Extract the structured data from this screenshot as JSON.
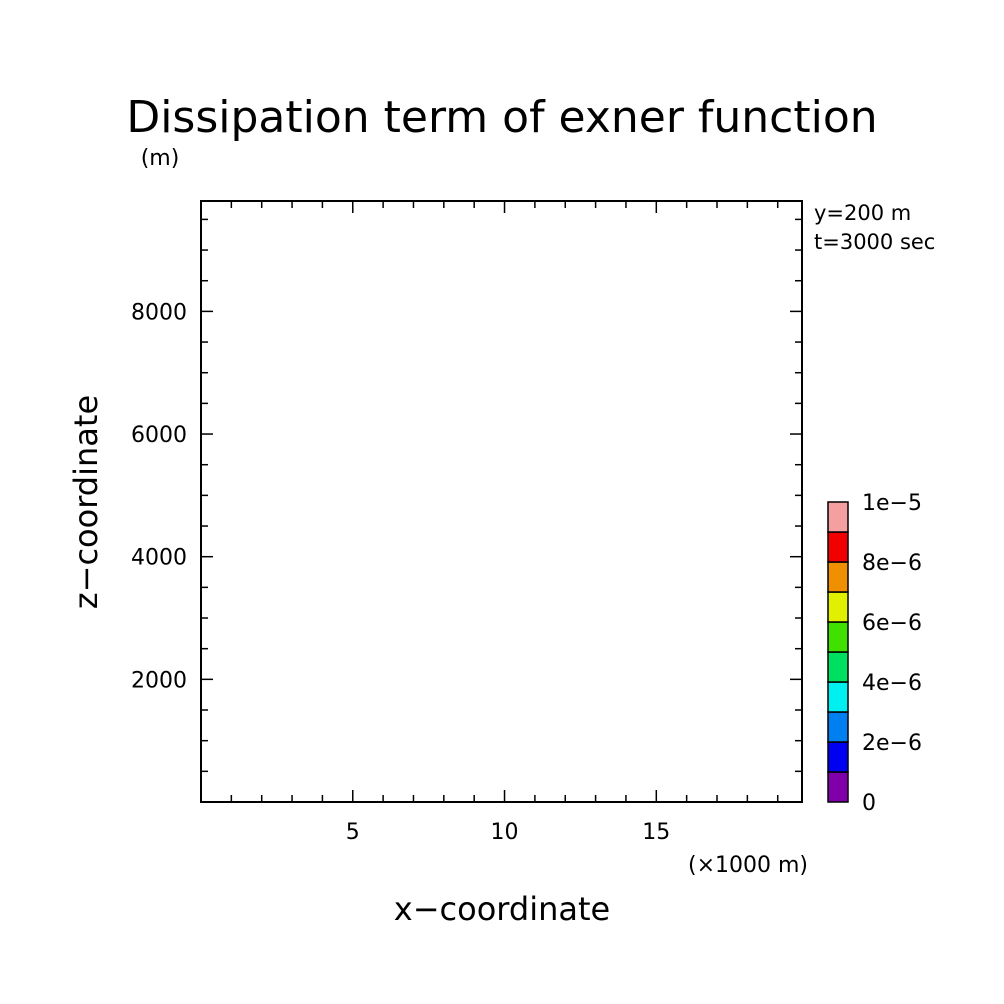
{
  "chart_data": {
    "type": "heatmap",
    "title": "Dissipation term of exner function",
    "xlabel": "x−coordinate",
    "ylabel": "z−coordinate",
    "x_unit": "(×1000 m)",
    "y_unit": "(m)",
    "xlim": [
      0,
      19.8
    ],
    "ylim": [
      0,
      9800
    ],
    "x_major_ticks": [
      5,
      10,
      15
    ],
    "x_tick_labels": [
      "5",
      "10",
      "15"
    ],
    "x_minor_step": 1,
    "y_major_ticks": [
      2000,
      4000,
      6000,
      8000
    ],
    "y_tick_labels": [
      "2000",
      "4000",
      "6000",
      "8000"
    ],
    "y_minor_step": 500,
    "grid": false,
    "annotations": [
      "y=200 m",
      "t=3000 sec"
    ],
    "colorbar": {
      "levels": [
        0,
        1e-06,
        2e-06,
        3e-06,
        4e-06,
        5e-06,
        6e-06,
        7e-06,
        8e-06,
        9e-06,
        1e-05
      ],
      "colors": [
        "#7f00a8",
        "#0000f0",
        "#0080f0",
        "#00f0f0",
        "#00e060",
        "#40e000",
        "#e0f000",
        "#f09000",
        "#f00000",
        "#f5a0a0"
      ],
      "tick_values": [
        0,
        2e-06,
        4e-06,
        6e-06,
        8e-06,
        1e-05
      ],
      "tick_labels": [
        "0",
        "2e−6",
        "4e−6",
        "6e−6",
        "8e−6",
        "1e−5"
      ]
    },
    "values": []
  }
}
